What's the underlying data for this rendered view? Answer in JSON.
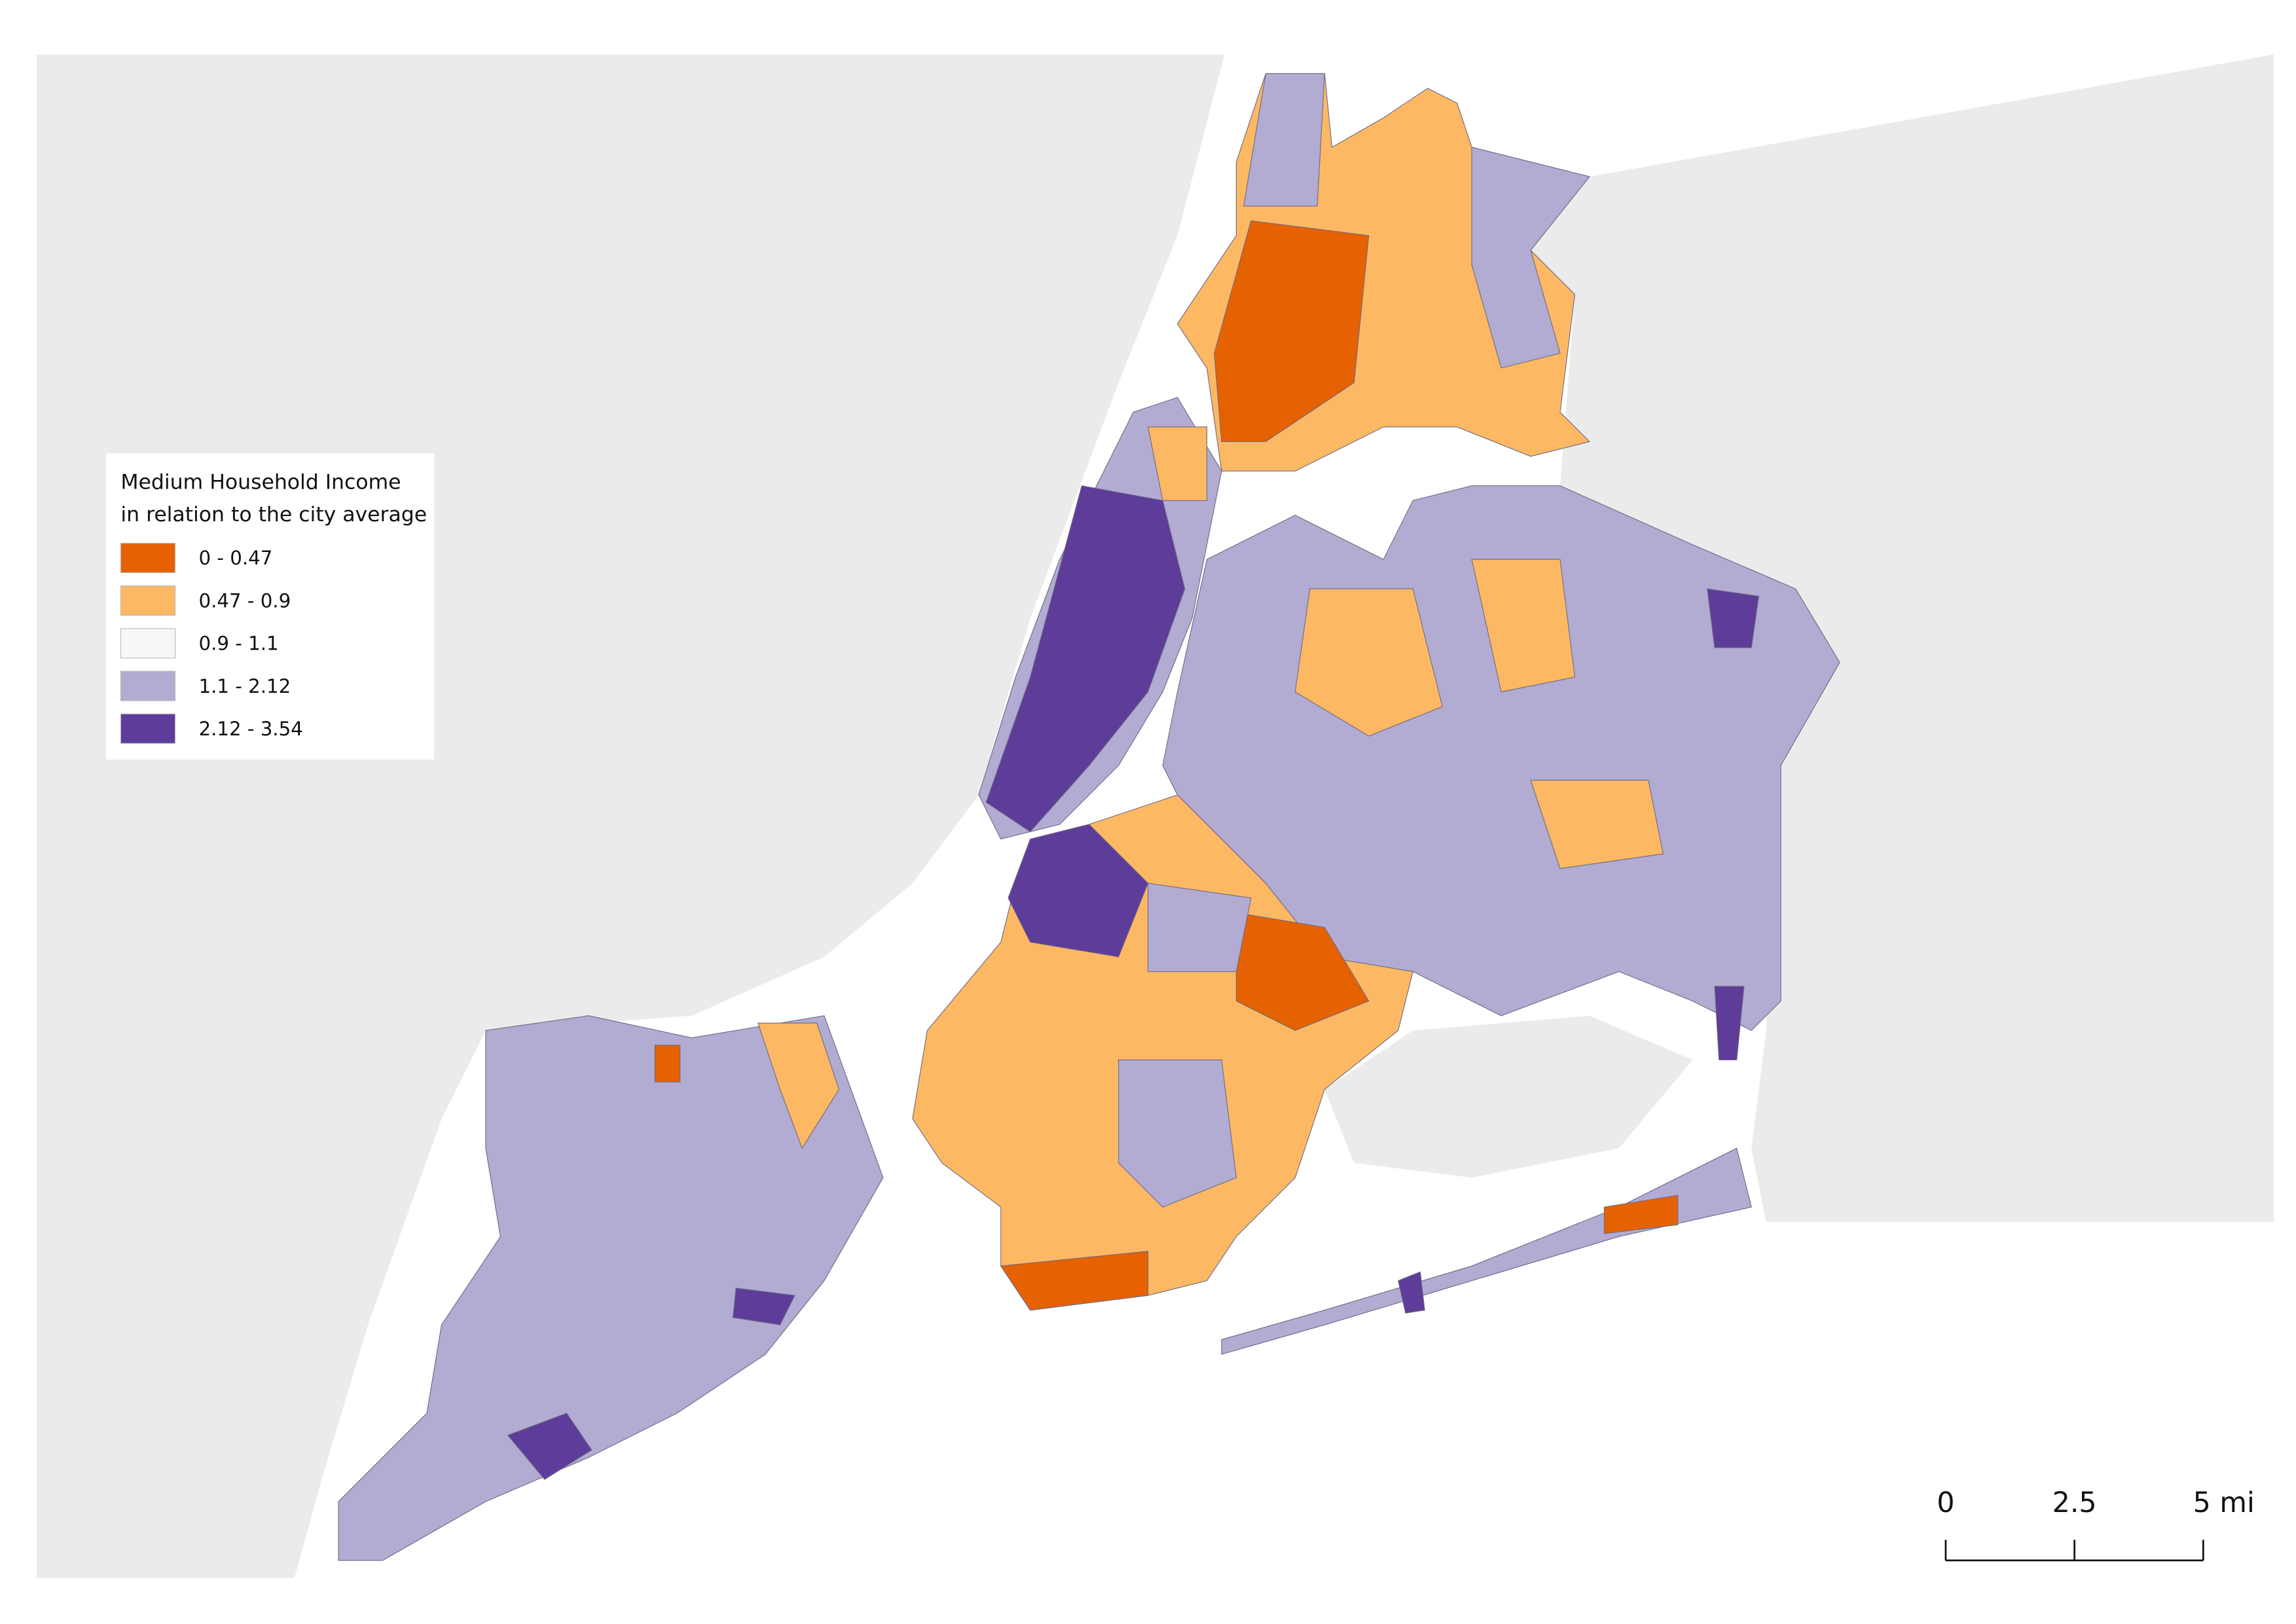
{
  "legend": {
    "title": [
      "Medium Household Income",
      "in relation to the city average"
    ],
    "items": [
      {
        "label": "0 - 0.47",
        "color": "#e66101"
      },
      {
        "label": "0.47 - 0.9",
        "color": "#fdb863"
      },
      {
        "label": "0.9 - 1.1",
        "color": "#f7f7f7"
      },
      {
        "label": "1.1 - 2.12",
        "color": "#b2abd2"
      },
      {
        "label": "2.12 - 3.54",
        "color": "#5e3c99"
      }
    ]
  },
  "scale_bar": {
    "ticks": [
      0,
      2.5,
      {
        "value": 5,
        "label": "5 mi"
      }
    ]
  }
}
